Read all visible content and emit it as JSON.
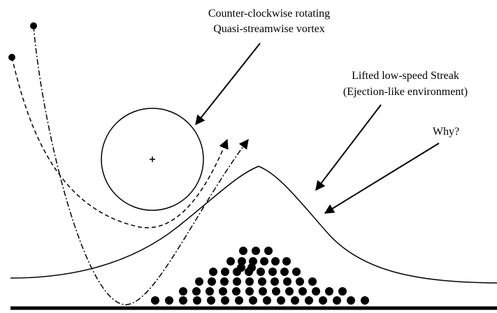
{
  "labels": [
    {
      "lines": [
        "Counter-clockwise rotating",
        "Quasi-streamwise vortex"
      ]
    },
    {
      "lines": [
        "Lifted low-speed Streak",
        "(Ejection-like environment)"
      ]
    },
    {
      "lines": [
        "Why?"
      ]
    }
  ]
}
